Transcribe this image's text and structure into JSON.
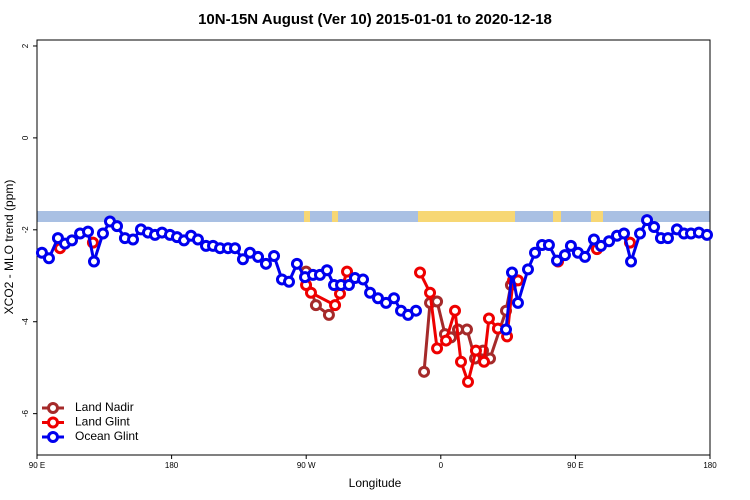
{
  "chart_data": {
    "type": "line",
    "title": "10N-15N August (Ver 10)   2015-01-01 to 2020-12-18",
    "x_label": "Longitude",
    "y_label": "XCO2 - MLO trend (ppm)",
    "xlim": [
      90,
      540
    ],
    "xticks": [
      {
        "value": 90,
        "label": "90 E"
      },
      {
        "value": 180,
        "label": "180"
      },
      {
        "value": 270,
        "label": "90 W"
      },
      {
        "value": 360,
        "label": "0"
      },
      {
        "value": 450,
        "label": "90 E"
      },
      {
        "value": 540,
        "label": "180"
      }
    ],
    "ylim": [
      -6.9,
      2.13
    ],
    "yticks": [
      2,
      0,
      -2,
      -4,
      -6
    ],
    "legend": "bottom-left",
    "series": [
      {
        "name": "Land Nadir",
        "color": "#a52a2a",
        "x": [
          269.9,
          276.5,
          285.2,
          320,
          348.8,
          352.8,
          357.5,
          362.8,
          366.8,
          371.5,
          377.5,
          382.9,
          388.2,
          392.9,
          403.6,
          406.9
        ],
        "values": [
          -2.91,
          -3.64,
          -3.85,
          null,
          -5.09,
          -3.59,
          -3.56,
          -4.27,
          -4.34,
          -4.17,
          -4.17,
          -4.8,
          -4.63,
          -4.8,
          -3.76,
          -3.2
        ]
      },
      {
        "name": "Land Glint",
        "color": "#ee0000",
        "x": [
          105.4,
          115,
          127.4,
          200,
          269.9,
          273.2,
          289.3,
          292.6,
          297.3,
          320,
          346.1,
          352.8,
          357.5,
          363.5,
          369.5,
          373.5,
          378.2,
          383.5,
          388.9,
          392.2,
          398.2,
          404.3,
          408.3,
          411.6,
          425,
          438.4,
          450,
          464.4,
          475,
          486.5
        ],
        "values": [
          -2.4,
          null,
          -2.28,
          null,
          -3.2,
          -3.37,
          -3.64,
          -3.39,
          -2.91,
          null,
          -2.93,
          -3.37,
          -4.58,
          -4.41,
          -3.76,
          -4.87,
          -5.31,
          -4.63,
          -4.87,
          -3.93,
          -4.15,
          -4.32,
          -3.1,
          -3.1,
          null,
          -2.69,
          null,
          -2.42,
          null,
          -2.28
        ]
      },
      {
        "name": "Ocean Glint",
        "color": "#0000ee",
        "x": [
          93.3,
          98.0,
          104.0,
          108.7,
          113.4,
          118.8,
          124.1,
          128.1,
          134.1,
          138.8,
          143.5,
          148.8,
          154.2,
          159.5,
          164.2,
          168.9,
          173.6,
          178.9,
          183.6,
          188.3,
          193.0,
          197.6,
          203.0,
          207.7,
          212.4,
          217.7,
          222.4,
          227.7,
          232.4,
          237.8,
          243.1,
          248.5,
          253.8,
          258.5,
          263.8,
          269.2,
          274.5,
          279.2,
          283.9,
          288.6,
          293.3,
          298.6,
          302.6,
          308.0,
          312.7,
          318.0,
          323.4,
          328.7,
          333.4,
          338.1,
          343.4,
          380,
          403.6,
          407.6,
          411.6,
          418.3,
          423.0,
          427.7,
          432.3,
          437.7,
          443.0,
          447.0,
          451.7,
          456.4,
          462.4,
          467.1,
          472.5,
          477.8,
          482.5,
          487.2,
          493.2,
          497.9,
          502.6,
          507.2,
          511.9,
          517.9,
          522.6,
          527.3,
          532.6,
          538.0
        ],
        "values": [
          -2.5,
          -2.62,
          -2.18,
          -2.3,
          -2.23,
          -2.08,
          -2.04,
          -2.69,
          -2.08,
          -1.82,
          -1.92,
          -2.18,
          -2.21,
          -1.99,
          -2.06,
          -2.11,
          -2.06,
          -2.11,
          -2.16,
          -2.23,
          -2.13,
          -2.21,
          -2.35,
          -2.35,
          -2.4,
          -2.4,
          -2.4,
          -2.64,
          -2.5,
          -2.59,
          -2.74,
          -2.57,
          -3.08,
          -3.13,
          -2.74,
          -3.03,
          -2.98,
          -2.98,
          -2.88,
          -3.2,
          -3.2,
          -3.2,
          -3.05,
          -3.08,
          -3.37,
          -3.49,
          -3.59,
          -3.49,
          -3.76,
          -3.85,
          -3.76,
          null,
          -4.17,
          -2.93,
          -3.59,
          -2.86,
          -2.5,
          -2.33,
          -2.33,
          -2.67,
          -2.55,
          -2.35,
          -2.5,
          -2.59,
          -2.21,
          -2.35,
          -2.25,
          -2.13,
          -2.08,
          -2.69,
          -2.08,
          -1.79,
          -1.94,
          -2.18,
          -2.18,
          -1.99,
          -2.08,
          -2.08,
          -2.06,
          -2.11
        ]
      }
    ]
  }
}
